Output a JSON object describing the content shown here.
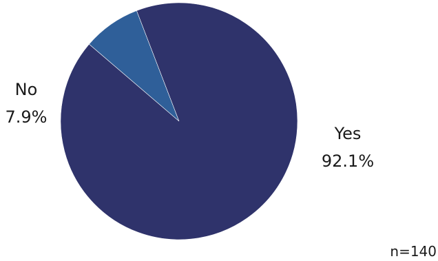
{
  "chart_data": {
    "type": "pie",
    "categories": [
      "Yes",
      "No"
    ],
    "values": [
      92.1,
      7.9
    ],
    "value_labels": [
      "92.1%",
      "7.9%"
    ],
    "colors": [
      "#2f336b",
      "#2f5f99"
    ],
    "legend": "none"
  },
  "footnote": "n=140"
}
